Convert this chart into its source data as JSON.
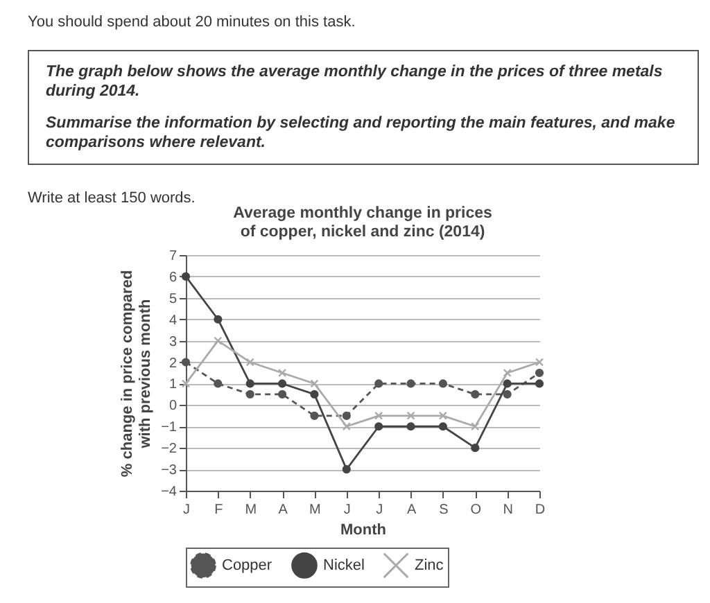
{
  "chart_data": {
    "type": "line",
    "title": "Average monthly change in prices of copper, nickel and zinc (2014)",
    "xlabel": "Month",
    "ylabel": "% change in price compared with previous month",
    "annotations": [
      "You should spend about 20 minutes on this task.",
      "The graph below shows the average monthly change in the prices of three metals during 2014.",
      "Summarise the information by selecting and reporting the main features, and make comparisons where relevant.",
      "Write at least 150 words."
    ],
    "categories": [
      "J",
      "F",
      "M",
      "A",
      "M",
      "J",
      "J",
      "A",
      "S",
      "O",
      "N",
      "D"
    ],
    "series": [
      {
        "name": "Copper",
        "color": "#555555",
        "line_style": "dashed",
        "marker": "circle",
        "values": [
          2,
          1,
          0.5,
          0.5,
          -0.5,
          -0.5,
          1,
          1,
          1,
          0.5,
          0.5,
          1.5
        ]
      },
      {
        "name": "Nickel",
        "color": "#444444",
        "line_style": "solid",
        "marker": "circle",
        "values": [
          6,
          4,
          1,
          1,
          0.5,
          -3,
          -1,
          -1,
          -1,
          -2,
          1,
          1
        ]
      },
      {
        "name": "Zinc",
        "color": "#aaaaaa",
        "line_style": "solid",
        "marker": "cross",
        "values": [
          1,
          3,
          2,
          1.5,
          1,
          -1,
          -0.5,
          -0.5,
          -0.5,
          -1,
          1.5,
          2
        ]
      }
    ],
    "ylim": [
      -4,
      7
    ],
    "yticks": [
      -4,
      -3,
      -2,
      -1,
      0,
      1,
      2,
      3,
      4,
      5,
      6,
      7
    ],
    "grid": "y",
    "legend": "bottom"
  }
}
